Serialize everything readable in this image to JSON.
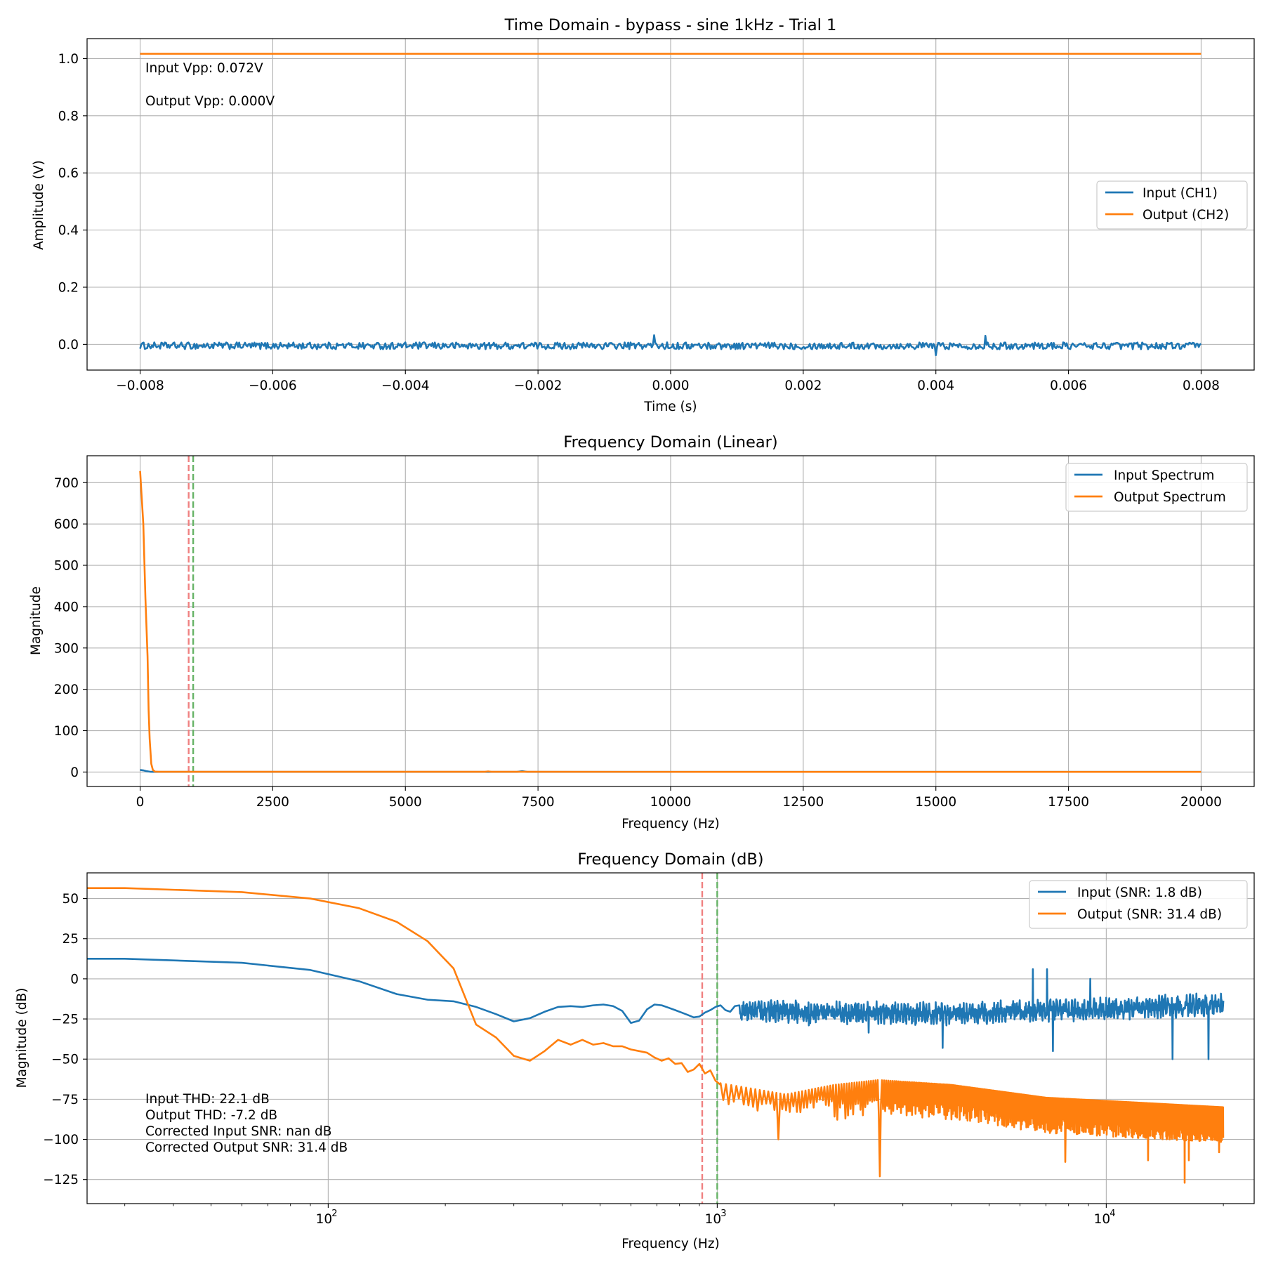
{
  "figure": {
    "background": "#ffffff"
  },
  "chart_data": [
    {
      "type": "line",
      "title": "Time Domain - bypass - sine 1kHz - Trial 1",
      "xlabel": "Time (s)",
      "ylabel": "Amplitude (V)",
      "xlim": [
        -0.0088,
        0.0088
      ],
      "ylim": [
        -0.09,
        1.07
      ],
      "x_scale": "linear",
      "grid": true,
      "xticks": [
        -0.008,
        -0.006,
        -0.004,
        -0.002,
        0.0,
        0.002,
        0.004,
        0.006,
        0.008
      ],
      "xtick_labels": [
        "−0.008",
        "−0.006",
        "−0.004",
        "−0.002",
        "0.000",
        "0.002",
        "0.004",
        "0.006",
        "0.008"
      ],
      "yticks": [
        0.0,
        0.2,
        0.4,
        0.6,
        0.8,
        1.0
      ],
      "ytick_labels": [
        "0.0",
        "0.2",
        "0.4",
        "0.6",
        "0.8",
        "1.0"
      ],
      "legend_position": "center-right",
      "series": [
        {
          "name": "Input (CH1)",
          "color": "#1f77b4",
          "shape": "noise",
          "x_range": [
            -0.008,
            0.008
          ],
          "baseline": -0.005,
          "noise_amplitude": 0.012,
          "spikes": [
            [
              -0.00025,
              0.032
            ],
            [
              0.00475,
              0.03
            ],
            [
              0.004,
              -0.038
            ]
          ]
        },
        {
          "name": "Output (CH2)",
          "color": "#ff7f0e",
          "shape": "constant",
          "x_range": [
            -0.008,
            0.008
          ],
          "value": 1.017
        }
      ],
      "annotations": [
        "Input Vpp: 0.072V",
        "Output Vpp: 0.000V"
      ]
    },
    {
      "type": "line",
      "title": "Frequency Domain (Linear)",
      "xlabel": "Frequency (Hz)",
      "ylabel": "Magnitude",
      "xlim": [
        -1000,
        21000
      ],
      "ylim": [
        -35,
        765
      ],
      "x_scale": "linear",
      "grid": true,
      "xticks": [
        0,
        2500,
        5000,
        7500,
        10000,
        12500,
        15000,
        17500,
        20000
      ],
      "xtick_labels": [
        "0",
        "2500",
        "5000",
        "7500",
        "10000",
        "12500",
        "15000",
        "17500",
        "20000"
      ],
      "yticks": [
        0,
        100,
        200,
        300,
        400,
        500,
        600,
        700
      ],
      "ytick_labels": [
        "0",
        "100",
        "200",
        "300",
        "400",
        "500",
        "600",
        "700"
      ],
      "legend_position": "top-right",
      "vlines": [
        {
          "x": 915,
          "color": "#f08080"
        },
        {
          "x": 1000,
          "color": "#66b366"
        }
      ],
      "series": [
        {
          "name": "Input Spectrum",
          "color": "#1f77b4",
          "points": [
            [
              0,
              5
            ],
            [
              60,
              4
            ],
            [
              120,
              2
            ],
            [
              200,
              0.5
            ],
            [
              300,
              0.3
            ],
            [
              7100,
              0.3
            ],
            [
              7200,
              2
            ],
            [
              7300,
              0.3
            ],
            [
              20000,
              0.3
            ]
          ]
        },
        {
          "name": "Output Spectrum",
          "color": "#ff7f0e",
          "points": [
            [
              0,
              728
            ],
            [
              60,
              600
            ],
            [
              100,
              420
            ],
            [
              140,
              280
            ],
            [
              160,
              150
            ],
            [
              180,
              80
            ],
            [
              210,
              20
            ],
            [
              240,
              5
            ],
            [
              280,
              1
            ],
            [
              350,
              0.5
            ],
            [
              6500,
              0.5
            ],
            [
              6560,
              1.5
            ],
            [
              6620,
              0.5
            ],
            [
              20000,
              0.3
            ]
          ]
        }
      ]
    },
    {
      "type": "line",
      "title": "Frequency Domain (dB)",
      "xlabel": "Frequency (Hz)",
      "ylabel": "Magnitude (dB)",
      "xlim": [
        24,
        24000
      ],
      "ylim": [
        -140,
        66
      ],
      "x_scale": "log",
      "grid": true,
      "xticks": [
        100,
        1000,
        10000
      ],
      "xtick_labels": [
        "10",
        "10",
        "10"
      ],
      "xtick_exponents": [
        "2",
        "3",
        "4"
      ],
      "yticks": [
        -125,
        -100,
        -75,
        -50,
        -25,
        0,
        25,
        50
      ],
      "ytick_labels": [
        "−125",
        "−100",
        "−75",
        "−50",
        "−25",
        "0",
        "25",
        "50"
      ],
      "legend_position": "top-right",
      "vlines": [
        {
          "x": 915,
          "color": "#f08080"
        },
        {
          "x": 1000,
          "color": "#66b366"
        }
      ],
      "series": [
        {
          "name": "Input (SNR: 1.8 dB)",
          "color": "#1f77b4",
          "low_points": [
            [
              24,
              12.5
            ],
            [
              30,
              12.5
            ],
            [
              60,
              10
            ],
            [
              90,
              5.5
            ],
            [
              120,
              -1.5
            ],
            [
              150,
              -9.5
            ],
            [
              180,
              -13
            ],
            [
              210,
              -14
            ],
            [
              240,
              -17.5
            ],
            [
              270,
              -22
            ],
            [
              300,
              -26.5
            ],
            [
              330,
              -24.5
            ],
            [
              360,
              -20.5
            ],
            [
              390,
              -17.5
            ],
            [
              420,
              -17
            ],
            [
              450,
              -17.5
            ],
            [
              480,
              -16.5
            ],
            [
              510,
              -16
            ],
            [
              540,
              -17
            ],
            [
              570,
              -20
            ],
            [
              600,
              -27.5
            ],
            [
              630,
              -26
            ],
            [
              660,
              -19
            ],
            [
              690,
              -16
            ],
            [
              720,
              -16.5
            ],
            [
              750,
              -18
            ],
            [
              780,
              -19.5
            ],
            [
              810,
              -21
            ],
            [
              840,
              -22.5
            ],
            [
              870,
              -24
            ],
            [
              900,
              -23.5
            ],
            [
              930,
              -21
            ],
            [
              960,
              -19.5
            ],
            [
              990,
              -17.5
            ],
            [
              1020,
              -16.5
            ],
            [
              1050,
              -19.5
            ],
            [
              1080,
              -20.5
            ],
            [
              1110,
              -17
            ],
            [
              1140,
              -16.5
            ]
          ],
          "noisy_from": 1140,
          "noisy_to": 20000,
          "noise_levels": [
            [
              1140,
              -20
            ],
            [
              4000,
              -22
            ],
            [
              6500,
              -20
            ],
            [
              20000,
              -16
            ]
          ],
          "noise_amplitude": 5,
          "spikes": [
            [
              1720,
              -29
            ],
            [
              2450,
              -33.5
            ],
            [
              3800,
              -43
            ],
            [
              6480,
              6
            ],
            [
              7050,
              6
            ],
            [
              7300,
              -45
            ],
            [
              9100,
              0
            ],
            [
              14800,
              -50
            ],
            [
              18300,
              -50
            ]
          ]
        },
        {
          "name": "Output (SNR: 31.4 dB)",
          "color": "#ff7f0e",
          "low_points": [
            [
              24,
              56.5
            ],
            [
              30,
              56.5
            ],
            [
              60,
              54
            ],
            [
              90,
              50
            ],
            [
              120,
              44
            ],
            [
              150,
              35.5
            ],
            [
              180,
              23.5
            ],
            [
              210,
              6.5
            ],
            [
              240,
              -28.5
            ],
            [
              270,
              -36.5
            ],
            [
              300,
              -48
            ],
            [
              330,
              -51
            ],
            [
              360,
              -45
            ],
            [
              390,
              -38
            ],
            [
              420,
              -41
            ],
            [
              450,
              -38
            ],
            [
              480,
              -41
            ],
            [
              510,
              -40
            ],
            [
              540,
              -42
            ],
            [
              570,
              -42
            ],
            [
              600,
              -44
            ],
            [
              630,
              -45
            ],
            [
              660,
              -46
            ],
            [
              690,
              -49
            ],
            [
              720,
              -51
            ],
            [
              750,
              -49.5
            ],
            [
              780,
              -53
            ],
            [
              810,
              -52.5
            ],
            [
              840,
              -58
            ],
            [
              870,
              -56.5
            ],
            [
              900,
              -53
            ],
            [
              930,
              -59
            ],
            [
              960,
              -57
            ],
            [
              990,
              -63.5
            ],
            [
              1020,
              -66
            ]
          ],
          "ripple_from": 1020,
          "ripple_to": 20000,
          "ripple_top_points": [
            [
              1020,
              -65
            ],
            [
              1500,
              -72
            ],
            [
              2000,
              -66
            ],
            [
              2600,
              -63
            ],
            [
              4000,
              -66
            ],
            [
              7000,
              -74
            ],
            [
              20000,
              -80
            ]
          ],
          "ripple_depth": 22,
          "ripple_spacing_hz": 33.3,
          "notches": [
            [
              1430,
              -100
            ],
            [
              2620,
              -123
            ],
            [
              7850,
              -114
            ],
            [
              12800,
              -113
            ],
            [
              15900,
              -127
            ],
            [
              16300,
              -113
            ],
            [
              19500,
              -108
            ]
          ]
        }
      ],
      "annotations": [
        "Input THD: 22.1 dB",
        "Output THD: -7.2 dB",
        "Corrected Input SNR: nan dB",
        "Corrected Output SNR: 31.4 dB"
      ]
    }
  ]
}
